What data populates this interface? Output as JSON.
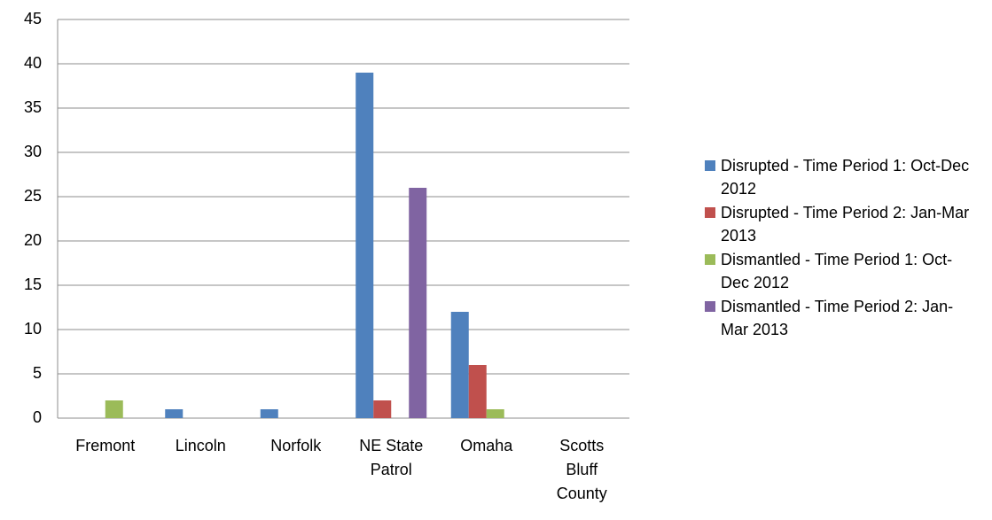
{
  "chart_data": {
    "type": "bar",
    "categories": [
      "Fremont",
      "Lincoln",
      "Norfolk",
      "NE State Patrol",
      "Omaha",
      "Scotts Bluff County"
    ],
    "series": [
      {
        "name": "Disrupted - Time Period 1: Oct-Dec 2012",
        "color": "#4f81bd",
        "values": [
          0,
          1,
          1,
          39,
          12,
          0
        ]
      },
      {
        "name": "Disrupted - Time Period 2: Jan-Mar 2013",
        "color": "#c0504d",
        "values": [
          0,
          0,
          0,
          2,
          6,
          0
        ]
      },
      {
        "name": "Dismantled - Time Period 1: Oct-Dec 2012",
        "color": "#9bbb59",
        "values": [
          2,
          0,
          0,
          0,
          1,
          0
        ]
      },
      {
        "name": "Dismantled - Time Period 2: Jan-Mar 2013",
        "color": "#8064a2",
        "values": [
          0,
          0,
          0,
          26,
          0,
          0
        ]
      }
    ],
    "ylim": [
      0,
      45
    ],
    "yticks": [
      0,
      5,
      10,
      15,
      20,
      25,
      30,
      35,
      40,
      45
    ],
    "grid": true,
    "legend": "right"
  }
}
